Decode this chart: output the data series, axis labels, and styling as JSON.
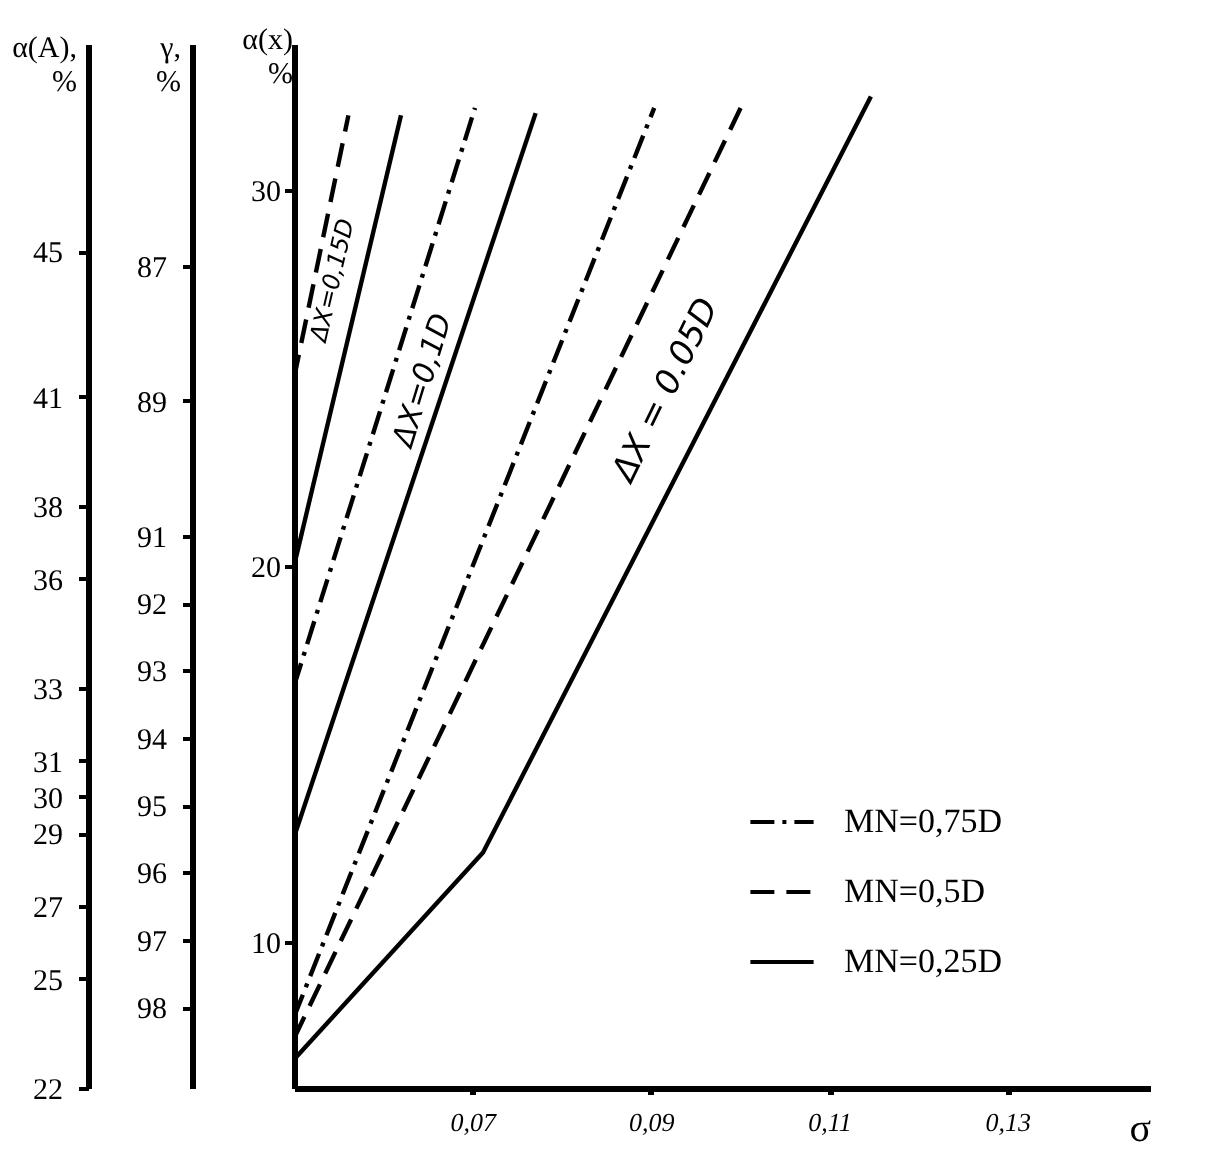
{
  "chart_data": {
    "type": "line",
    "xlabel": "σ",
    "ylabel": "α(x)\n%",
    "y2label": "γ,\n%",
    "y3label": "α(A),\n%",
    "xlim": [
      0.05,
      0.146
    ],
    "xticks": [
      {
        "value": 0.07,
        "label": "0,07"
      },
      {
        "value": 0.09,
        "label": "0,09"
      },
      {
        "value": 0.11,
        "label": "0,11"
      },
      {
        "value": 0.13,
        "label": "0,13"
      }
    ],
    "ylim": [
      6.1,
      33.9
    ],
    "yticks": [
      10,
      20,
      30
    ],
    "y2lim": [
      99.2,
      83.7
    ],
    "y2ticks": [
      87,
      89,
      91,
      92,
      93,
      94,
      95,
      96,
      97,
      98
    ],
    "y3lim": [
      22,
      50.7
    ],
    "y3ticks": [
      45,
      41,
      38,
      36,
      33,
      31,
      30,
      29,
      27,
      25,
      22
    ],
    "series": [
      {
        "name": "MN=0,75D",
        "color": "#000000",
        "line_style": "dashdot",
        "x": [
          0.05,
          0.0703,
          null,
          0.05,
          0.0904
        ],
        "values": [
          16.8,
          32.2,
          null,
          7.99,
          32.2
        ]
      },
      {
        "name": "MN=0,5D",
        "color": "#000000",
        "line_style": "dashed",
        "x": [
          0.05,
          0.0561,
          null,
          0.05,
          0.1005
        ],
        "values": [
          25.0,
          32.0,
          null,
          7.42,
          32.4
        ]
      },
      {
        "name": "MN=0,25D",
        "color": "#000000",
        "line_style": "solid",
        "x": [
          0.05,
          0.062,
          null,
          0.05,
          0.0771,
          null,
          0.05,
          0.0712,
          0.1147
        ],
        "values": [
          20.0,
          32.0,
          null,
          12.78,
          32.06,
          null,
          6.86,
          12.37,
          32.5
        ]
      }
    ],
    "annotations": [
      "ΔX=0,15D",
      "ΔX=0,1D",
      "ΔX = 0.05D"
    ],
    "legend": "bottom right",
    "grid": false,
    "marker": "none"
  }
}
